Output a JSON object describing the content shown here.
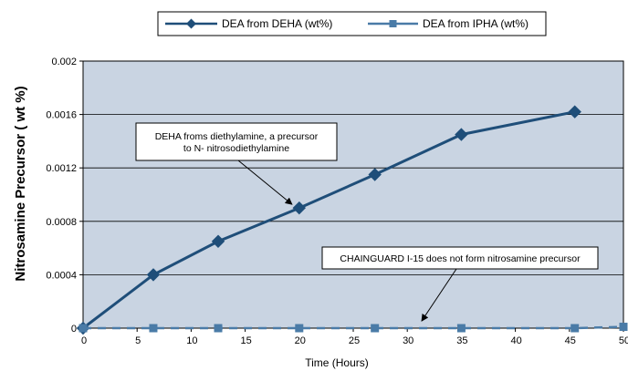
{
  "chart_data": {
    "type": "line",
    "xlabel": "Time (Hours)",
    "ylabel": "Nitrosamine Precursor ( wt %)",
    "xlim": [
      0,
      50
    ],
    "ylim": [
      0,
      0.002
    ],
    "x_ticks": [
      "0",
      "5",
      "10",
      "15",
      "20",
      "25",
      "30",
      "35",
      "40",
      "45",
      "50"
    ],
    "y_ticks": [
      "0",
      "0.0004",
      "0.0008",
      "0.0012",
      "0.0016",
      "0.002"
    ],
    "grid": "horizontal",
    "legend_position": "top",
    "plot_background": "#c9d4e2",
    "series": [
      {
        "name": "DEA from DEHA (wt%)",
        "color": "#1f4e79",
        "marker": "diamond",
        "line_style": "solid",
        "x": [
          0,
          6.5,
          12.5,
          20,
          27,
          35,
          45.5
        ],
        "y": [
          0,
          0.0004,
          0.00065,
          0.0009,
          0.00115,
          0.00145,
          0.00162
        ]
      },
      {
        "name": "DEA from IPHA (wt%)",
        "color": "#4a7ba7",
        "marker": "square",
        "line_style": "dashed",
        "x": [
          0,
          6.5,
          12.5,
          20,
          27,
          35,
          45.5,
          50
        ],
        "y": [
          0,
          0,
          0,
          0,
          0,
          0,
          0,
          1e-05
        ]
      }
    ],
    "annotations": [
      {
        "lines": [
          "DEHA froms diethylamine, a precursor",
          "to  N- nitrosodiethylamine"
        ],
        "target_series": 0,
        "target_index": 3
      },
      {
        "lines": [
          "CHAINGUARD  I-15 does not form nitrosamine precursor"
        ],
        "target_x": 31,
        "target_y": 0
      }
    ]
  }
}
